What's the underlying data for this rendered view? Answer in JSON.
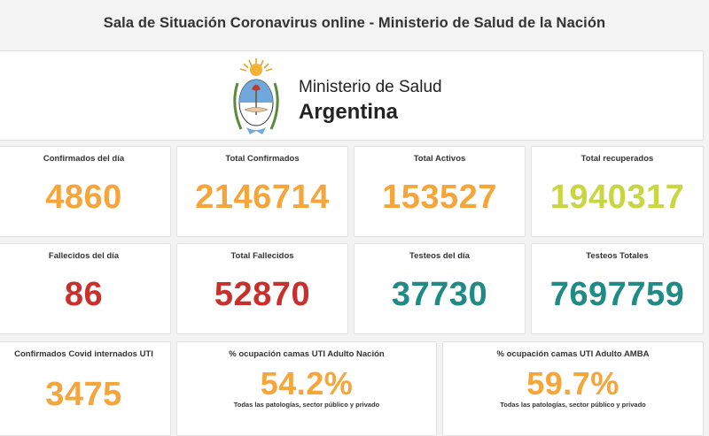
{
  "header": {
    "title": "Sala de Situación Coronavirus online - Ministerio de Salud de la Nación"
  },
  "banner": {
    "ministry": "Ministerio de Salud",
    "country": "Argentina"
  },
  "stats": {
    "confirmados_dia": {
      "label": "Confirmados del día",
      "value": "4860",
      "color": "#f5a53a"
    },
    "total_confirmados": {
      "label": "Total Confirmados",
      "value": "2146714",
      "color": "#f5a53a"
    },
    "total_activos": {
      "label": "Total Activos",
      "value": "153527",
      "color": "#f5a53a"
    },
    "total_recuperados": {
      "label": "Total recuperados",
      "value": "1940317",
      "color": "#c8d641"
    },
    "fallecidos_dia": {
      "label": "Fallecidos del día",
      "value": "86",
      "color": "#c9302c"
    },
    "total_fallecidos": {
      "label": "Total Fallecidos",
      "value": "52870",
      "color": "#c9302c"
    },
    "testeos_dia": {
      "label": "Testeos del día",
      "value": "37730",
      "color": "#1f8a86"
    },
    "testeos_totales": {
      "label": "Testeos Totales",
      "value": "7697759",
      "color": "#1f8a86"
    },
    "internados_uti": {
      "label": "Confirmados Covid internados UTI",
      "value": "3475",
      "color": "#f5a53a"
    },
    "ocupacion_nacion": {
      "label": "% ocupación camas UTI Adulto Nación",
      "value": "54.2%",
      "note": "Todas las patologías, sector público y privado",
      "color": "#f5a53a"
    },
    "ocupacion_amba": {
      "label": "% ocupación camas UTI Adulto AMBA",
      "value": "59.7%",
      "note": "Todas las patologías, sector público y privado",
      "color": "#f5a53a"
    }
  }
}
